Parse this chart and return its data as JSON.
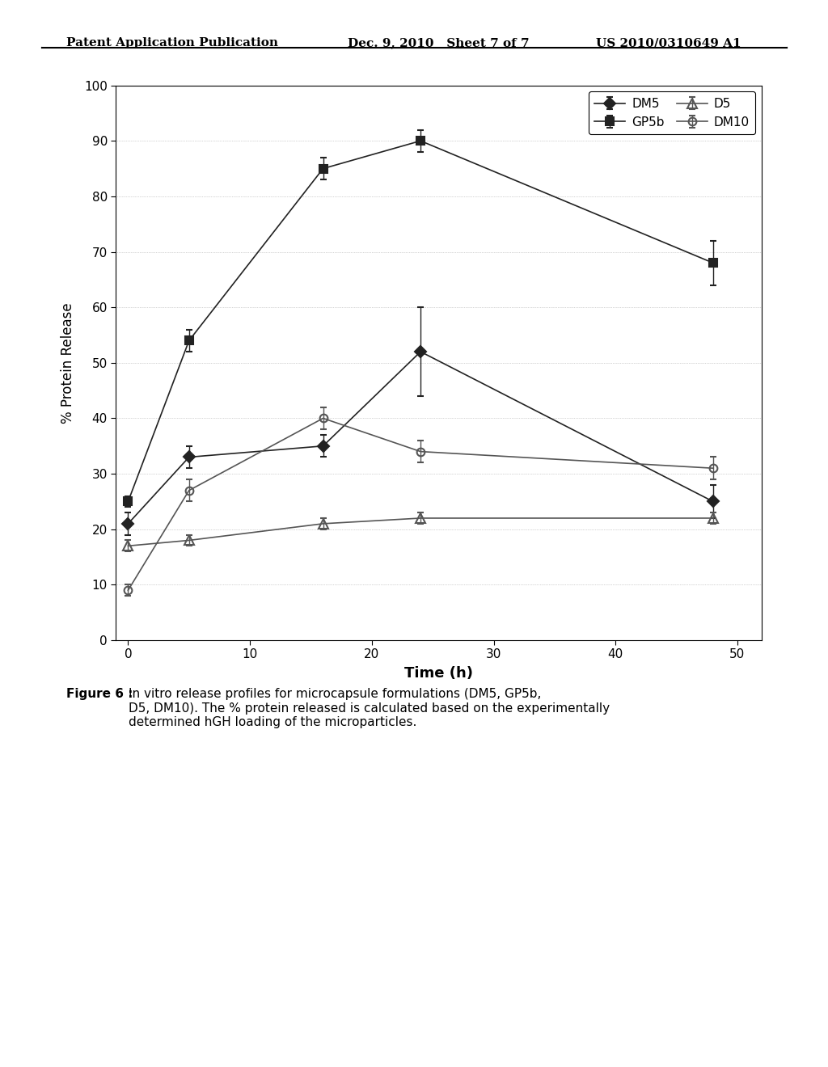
{
  "DM5": {
    "x": [
      0,
      5,
      16,
      24,
      48
    ],
    "y": [
      21,
      33,
      35,
      52,
      25
    ],
    "yerr": [
      2,
      2,
      2,
      8,
      3
    ],
    "color": "#222222",
    "marker": "D",
    "linestyle": "-",
    "label": "DM5",
    "markersize": 7,
    "fillstyle": "full"
  },
  "GP5b": {
    "x": [
      0,
      5,
      16,
      24,
      48
    ],
    "y": [
      25,
      54,
      85,
      90,
      68
    ],
    "yerr": [
      1,
      2,
      2,
      2,
      4
    ],
    "color": "#222222",
    "marker": "s",
    "linestyle": "-",
    "label": "GP5b",
    "markersize": 7,
    "fillstyle": "full"
  },
  "D5": {
    "x": [
      0,
      5,
      16,
      24,
      48
    ],
    "y": [
      17,
      18,
      21,
      22,
      22
    ],
    "yerr": [
      1,
      1,
      1,
      1,
      1
    ],
    "color": "#555555",
    "marker": "^",
    "linestyle": "-",
    "label": "D5",
    "markersize": 8,
    "fillstyle": "none"
  },
  "DM10": {
    "x": [
      0,
      5,
      16,
      24,
      48
    ],
    "y": [
      9,
      27,
      40,
      34,
      31
    ],
    "yerr": [
      1,
      2,
      2,
      2,
      2
    ],
    "color": "#555555",
    "marker": "o",
    "linestyle": "-",
    "label": "DM10",
    "markersize": 7,
    "fillstyle": "none"
  },
  "xlabel": "Time (h)",
  "ylabel": "% Protein Release",
  "xlim": [
    -1,
    52
  ],
  "ylim": [
    0,
    100
  ],
  "xticks": [
    0,
    10,
    20,
    30,
    40,
    50
  ],
  "yticks": [
    0,
    10,
    20,
    30,
    40,
    50,
    60,
    70,
    80,
    90,
    100
  ],
  "header_left": "Patent Application Publication",
  "header_mid": "Dec. 9, 2010   Sheet 7 of 7",
  "header_right": "US 2010/0310649 A1",
  "caption_bold": "Figure 6 : ",
  "caption_normal": "In vitro release profiles for microcapsule formulations (DM5, GP5b,\nD5, DM10). The % protein released is calculated based on the experimentally\ndetermined hGH loading of the microparticles.",
  "bg_color": "#ffffff",
  "plot_bg_color": "#ffffff"
}
